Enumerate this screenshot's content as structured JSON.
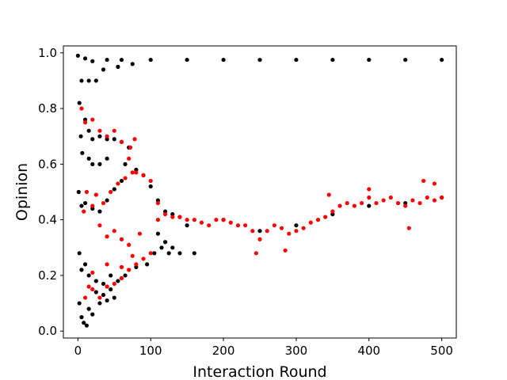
{
  "chart_data": {
    "type": "scatter",
    "title": "",
    "xlabel": "Interaction Round",
    "ylabel": "Opinion",
    "xlim": [
      -20,
      520
    ],
    "ylim": [
      -0.025,
      1.025
    ],
    "xticks": [
      0,
      100,
      200,
      300,
      400,
      500
    ],
    "yticks": [
      0.0,
      0.2,
      0.4,
      0.6,
      0.8,
      1.0
    ],
    "xtick_labels": [
      "0",
      "100",
      "200",
      "300",
      "400",
      "500"
    ],
    "ytick_labels": [
      "0.0",
      "0.2",
      "0.4",
      "0.6",
      "0.8",
      "1.0"
    ],
    "grid": false,
    "legend": "none",
    "series": [
      {
        "color": "#000000",
        "points": [
          [
            0,
            0.99
          ],
          [
            10,
            0.98
          ],
          [
            20,
            0.97
          ],
          [
            40,
            0.975
          ],
          [
            60,
            0.975
          ],
          [
            100,
            0.975
          ],
          [
            150,
            0.975
          ],
          [
            200,
            0.975
          ],
          [
            250,
            0.975
          ],
          [
            300,
            0.975
          ],
          [
            350,
            0.975
          ],
          [
            400,
            0.975
          ],
          [
            450,
            0.975
          ],
          [
            500,
            0.975
          ],
          [
            5,
            0.9
          ],
          [
            15,
            0.9
          ],
          [
            25,
            0.9
          ],
          [
            35,
            0.94
          ],
          [
            55,
            0.95
          ],
          [
            75,
            0.96
          ],
          [
            2,
            0.82
          ],
          [
            4,
            0.7
          ],
          [
            6,
            0.64
          ],
          [
            10,
            0.76
          ],
          [
            15,
            0.72
          ],
          [
            20,
            0.69
          ],
          [
            30,
            0.7
          ],
          [
            40,
            0.69
          ],
          [
            50,
            0.69
          ],
          [
            60,
            0.68
          ],
          [
            65,
            0.6
          ],
          [
            70,
            0.66
          ],
          [
            80,
            0.58
          ],
          [
            90,
            0.56
          ],
          [
            100,
            0.52
          ],
          [
            110,
            0.47
          ],
          [
            120,
            0.43
          ],
          [
            130,
            0.42
          ],
          [
            140,
            0.41
          ],
          [
            1,
            0.5
          ],
          [
            5,
            0.45
          ],
          [
            10,
            0.46
          ],
          [
            20,
            0.44
          ],
          [
            30,
            0.43
          ],
          [
            40,
            0.47
          ],
          [
            50,
            0.51
          ],
          [
            60,
            0.54
          ],
          [
            15,
            0.62
          ],
          [
            20,
            0.6
          ],
          [
            30,
            0.6
          ],
          [
            40,
            0.62
          ],
          [
            2,
            0.28
          ],
          [
            5,
            0.22
          ],
          [
            10,
            0.24
          ],
          [
            15,
            0.2
          ],
          [
            25,
            0.18
          ],
          [
            35,
            0.17
          ],
          [
            45,
            0.15
          ],
          [
            55,
            0.18
          ],
          [
            65,
            0.2
          ],
          [
            80,
            0.23
          ],
          [
            95,
            0.24
          ],
          [
            105,
            0.28
          ],
          [
            110,
            0.35
          ],
          [
            115,
            0.3
          ],
          [
            125,
            0.28
          ],
          [
            140,
            0.28
          ],
          [
            160,
            0.28
          ],
          [
            120,
            0.32
          ],
          [
            130,
            0.3
          ],
          [
            2,
            0.1
          ],
          [
            5,
            0.05
          ],
          [
            8,
            0.03
          ],
          [
            12,
            0.02
          ],
          [
            15,
            0.08
          ],
          [
            20,
            0.06
          ],
          [
            30,
            0.1
          ],
          [
            40,
            0.11
          ],
          [
            50,
            0.12
          ],
          [
            25,
            0.14
          ],
          [
            35,
            0.13
          ],
          [
            45,
            0.2
          ],
          [
            60,
            0.19
          ],
          [
            150,
            0.38
          ],
          [
            200,
            0.4
          ],
          [
            250,
            0.36
          ],
          [
            300,
            0.38
          ],
          [
            350,
            0.42
          ],
          [
            400,
            0.45
          ],
          [
            450,
            0.46
          ],
          [
            500,
            0.48
          ]
        ]
      },
      {
        "color": "#ff0000",
        "points": [
          [
            5,
            0.8
          ],
          [
            10,
            0.75
          ],
          [
            20,
            0.76
          ],
          [
            30,
            0.72
          ],
          [
            40,
            0.7
          ],
          [
            50,
            0.72
          ],
          [
            60,
            0.68
          ],
          [
            70,
            0.62
          ],
          [
            80,
            0.57
          ],
          [
            90,
            0.56
          ],
          [
            100,
            0.54
          ],
          [
            110,
            0.46
          ],
          [
            120,
            0.42
          ],
          [
            130,
            0.41
          ],
          [
            140,
            0.41
          ],
          [
            150,
            0.4
          ],
          [
            160,
            0.4
          ],
          [
            170,
            0.39
          ],
          [
            180,
            0.38
          ],
          [
            190,
            0.4
          ],
          [
            200,
            0.4
          ],
          [
            210,
            0.39
          ],
          [
            220,
            0.38
          ],
          [
            230,
            0.38
          ],
          [
            240,
            0.36
          ],
          [
            250,
            0.33
          ],
          [
            260,
            0.36
          ],
          [
            270,
            0.38
          ],
          [
            280,
            0.37
          ],
          [
            290,
            0.35
          ],
          [
            300,
            0.36
          ],
          [
            310,
            0.37
          ],
          [
            320,
            0.39
          ],
          [
            330,
            0.4
          ],
          [
            340,
            0.41
          ],
          [
            350,
            0.43
          ],
          [
            360,
            0.45
          ],
          [
            370,
            0.46
          ],
          [
            380,
            0.45
          ],
          [
            390,
            0.46
          ],
          [
            400,
            0.48
          ],
          [
            410,
            0.46
          ],
          [
            420,
            0.47
          ],
          [
            430,
            0.48
          ],
          [
            440,
            0.46
          ],
          [
            450,
            0.45
          ],
          [
            460,
            0.47
          ],
          [
            470,
            0.46
          ],
          [
            480,
            0.48
          ],
          [
            490,
            0.47
          ],
          [
            500,
            0.48
          ],
          [
            245,
            0.28
          ],
          [
            285,
            0.29
          ],
          [
            345,
            0.49
          ],
          [
            400,
            0.51
          ],
          [
            455,
            0.37
          ],
          [
            490,
            0.53
          ],
          [
            475,
            0.54
          ],
          [
            8,
            0.43
          ],
          [
            12,
            0.5
          ],
          [
            20,
            0.45
          ],
          [
            30,
            0.38
          ],
          [
            40,
            0.34
          ],
          [
            50,
            0.36
          ],
          [
            25,
            0.49
          ],
          [
            35,
            0.46
          ],
          [
            45,
            0.5
          ],
          [
            55,
            0.53
          ],
          [
            65,
            0.55
          ],
          [
            75,
            0.57
          ],
          [
            10,
            0.12
          ],
          [
            15,
            0.16
          ],
          [
            20,
            0.15
          ],
          [
            30,
            0.12
          ],
          [
            40,
            0.16
          ],
          [
            50,
            0.17
          ],
          [
            60,
            0.19
          ],
          [
            70,
            0.22
          ],
          [
            80,
            0.24
          ],
          [
            90,
            0.26
          ],
          [
            100,
            0.28
          ],
          [
            110,
            0.4
          ],
          [
            60,
            0.33
          ],
          [
            70,
            0.31
          ],
          [
            85,
            0.35
          ],
          [
            20,
            0.21
          ],
          [
            40,
            0.24
          ],
          [
            60,
            0.23
          ],
          [
            75,
            0.27
          ],
          [
            78,
            0.69
          ],
          [
            72,
            0.66
          ]
        ]
      }
    ]
  }
}
